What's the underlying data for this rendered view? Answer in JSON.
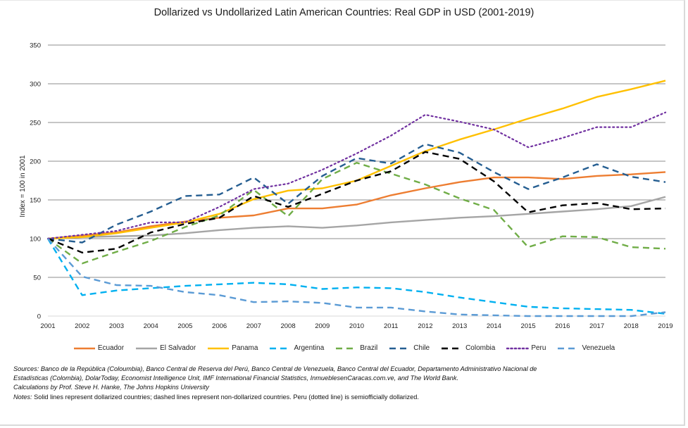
{
  "chart_data": {
    "type": "line",
    "title": "Dollarized vs Undollarized Latin American Countries: Real GDP in USD (2001-2019)",
    "xlabel": "",
    "ylabel": "Index = 100 in 2001",
    "ylim": [
      0,
      350
    ],
    "yticks": [
      0,
      50,
      100,
      150,
      200,
      250,
      300,
      350
    ],
    "grid": true,
    "legend_position": "bottom",
    "x": [
      "2001",
      "2002",
      "2003",
      "2004",
      "2005",
      "2006",
      "2007",
      "2008",
      "2009",
      "2010",
      "2011",
      "2012",
      "2013",
      "2014",
      "2015",
      "2016",
      "2017",
      "2018",
      "2019"
    ],
    "series": [
      {
        "name": "Ecuador",
        "color": "#ED7D31",
        "style": "solid",
        "values": [
          100,
          104,
          108,
          116,
          122,
          127,
          130,
          139,
          139,
          144,
          156,
          165,
          173,
          179,
          179,
          177,
          181,
          183,
          186
        ]
      },
      {
        "name": "El Salvador",
        "color": "#A5A5A5",
        "style": "solid",
        "values": [
          100,
          102,
          103,
          104,
          107,
          111,
          114,
          116,
          114,
          117,
          121,
          124,
          127,
          129,
          132,
          135,
          138,
          142,
          154
        ]
      },
      {
        "name": "Panama",
        "color": "#FFC000",
        "style": "solid",
        "values": [
          100,
          102,
          107,
          114,
          121,
          132,
          151,
          162,
          165,
          175,
          194,
          213,
          228,
          241,
          255,
          268,
          283,
          293,
          304
        ]
      },
      {
        "name": "Argentina",
        "color": "#00B0F0",
        "style": "dashed",
        "values": [
          100,
          27,
          33,
          36,
          39,
          41,
          43,
          41,
          35,
          37,
          36,
          31,
          24,
          18,
          12,
          10,
          9,
          8,
          3
        ]
      },
      {
        "name": "Brazil",
        "color": "#70AD47",
        "style": "dashed",
        "values": [
          100,
          68,
          83,
          97,
          115,
          130,
          163,
          129,
          177,
          198,
          184,
          170,
          152,
          137,
          89,
          103,
          102,
          89,
          87
        ]
      },
      {
        "name": "Chile",
        "color": "#255E91",
        "style": "dashed",
        "values": [
          100,
          95,
          118,
          135,
          155,
          157,
          179,
          145,
          181,
          204,
          197,
          222,
          211,
          186,
          164,
          179,
          196,
          180,
          173
        ]
      },
      {
        "name": "Colombia",
        "color": "#000000",
        "style": "dashed",
        "values": [
          100,
          82,
          87,
          108,
          119,
          127,
          155,
          141,
          158,
          175,
          187,
          212,
          203,
          174,
          134,
          143,
          146,
          138,
          139
        ]
      },
      {
        "name": "Peru",
        "color": "#7030A0",
        "style": "dotted",
        "values": [
          100,
          105,
          110,
          121,
          121,
          141,
          164,
          171,
          189,
          210,
          233,
          260,
          251,
          241,
          218,
          230,
          244,
          244,
          263
        ]
      },
      {
        "name": "Venezuela",
        "color": "#5B9BD5",
        "style": "dashed",
        "values": [
          100,
          51,
          40,
          39,
          31,
          27,
          18,
          19,
          17,
          11,
          11,
          6,
          2,
          1,
          0,
          0,
          0,
          0,
          5
        ]
      }
    ]
  },
  "notes": {
    "sources_label": "Sources:",
    "sources_line1": " Banco de la República (Coloumbia), Banco Central de Reserva del Perú, Banco Central de Venezuela, Banco Central del Ecuador, Departamento Administrativo Nacional de",
    "sources_line2": "Estadísticas (Colombia), DolarToday, Economist Intelligence Unit, IMF International Financial Statistics, InmueblesenCaracas.com.ve, and The World Bank.",
    "calculations": "Calculations by  Prof. Steve H. Hanke, The Johns Hopkins University",
    "notes_label": "Notes:",
    "notes_text": " Solid lines represent dollarized countries; dashed lines represent non-dollarized countries. Peru (dotted line) is semiofficially dollarized."
  }
}
